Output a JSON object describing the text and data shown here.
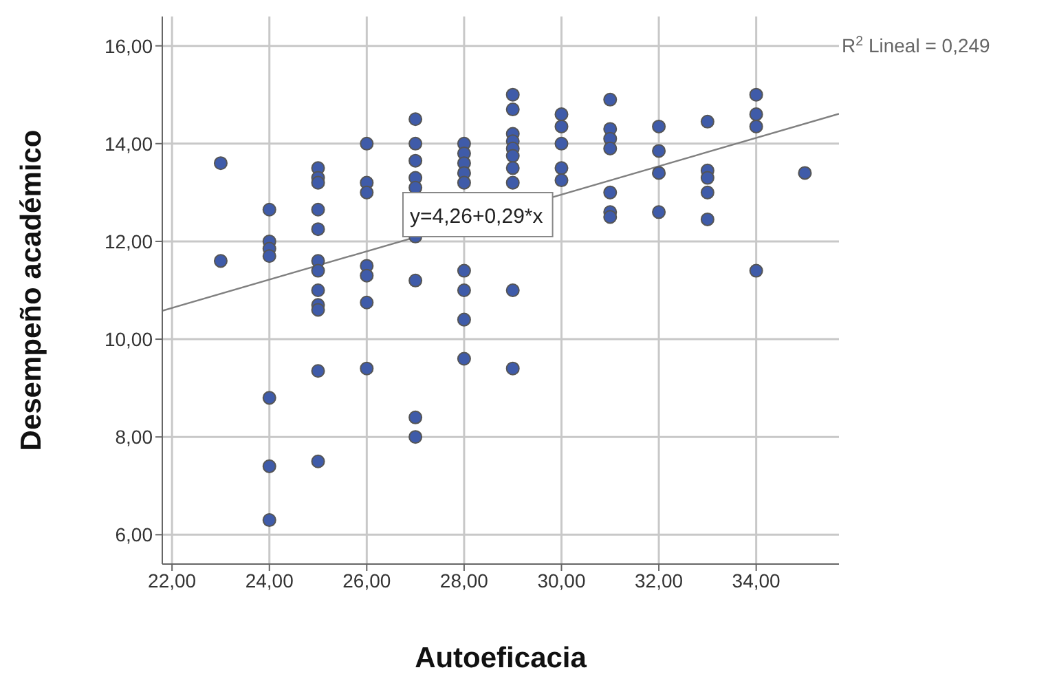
{
  "chart_data": {
    "type": "scatter",
    "xlabel": "Autoeficacia",
    "ylabel": "Desempeño académico",
    "xlim": [
      21.8,
      35.7
    ],
    "ylim": [
      5.4,
      16.6
    ],
    "xticks": [
      {
        "value": 22,
        "label": "22,00"
      },
      {
        "value": 24,
        "label": "24,00"
      },
      {
        "value": 26,
        "label": "26,00"
      },
      {
        "value": 28,
        "label": "28,00"
      },
      {
        "value": 30,
        "label": "30,00"
      },
      {
        "value": 32,
        "label": "32,00"
      },
      {
        "value": 34,
        "label": "34,00"
      }
    ],
    "yticks": [
      {
        "value": 6,
        "label": "6,00"
      },
      {
        "value": 8,
        "label": "8,00"
      },
      {
        "value": 10,
        "label": "10,00"
      },
      {
        "value": 12,
        "label": "12,00"
      },
      {
        "value": 14,
        "label": "14,00"
      },
      {
        "value": 16,
        "label": "16,00"
      }
    ],
    "grid": true,
    "annotations": [
      "R$^{2}$ Lineal = 0,249",
      "y=4,26+0,29*x"
    ],
    "series": [
      {
        "color": "#3f5ba9",
        "marker": "circle",
        "x": [
          23,
          23,
          24,
          24,
          24,
          24,
          24,
          24,
          24,
          25,
          25,
          25,
          25,
          25,
          25,
          25,
          25,
          25,
          25,
          25,
          25,
          26,
          26,
          26,
          26,
          26,
          26,
          26,
          27,
          27,
          27,
          27,
          27,
          27,
          27,
          27,
          27,
          28,
          28,
          28,
          28,
          28,
          28,
          28,
          28,
          28,
          29,
          29,
          29,
          29,
          29,
          29,
          29,
          29,
          29,
          29,
          30,
          30,
          30,
          30,
          30,
          31,
          31,
          31,
          31,
          31,
          31,
          31,
          32,
          32,
          32,
          32,
          33,
          33,
          33,
          33,
          33,
          34,
          34,
          34,
          34,
          35
        ],
        "values": [
          13.6,
          11.6,
          12.65,
          12.0,
          11.85,
          11.7,
          8.8,
          7.4,
          6.3,
          13.5,
          13.3,
          13.2,
          12.65,
          12.25,
          11.6,
          11.4,
          11.0,
          10.7,
          10.6,
          9.35,
          7.5,
          14.0,
          13.2,
          13.0,
          11.5,
          11.3,
          10.75,
          9.4,
          14.5,
          14.0,
          13.65,
          13.3,
          13.1,
          12.1,
          11.2,
          8.4,
          8.0,
          14.0,
          13.8,
          13.6,
          13.4,
          13.2,
          11.4,
          11.0,
          10.4,
          9.6,
          15.0,
          14.7,
          14.2,
          14.05,
          13.9,
          13.75,
          13.5,
          13.2,
          11.0,
          9.4,
          14.6,
          14.35,
          14.0,
          13.5,
          13.25,
          14.9,
          14.3,
          14.1,
          13.9,
          13.0,
          12.6,
          12.5,
          14.35,
          13.85,
          13.4,
          12.6,
          14.45,
          13.45,
          13.3,
          13.0,
          12.45,
          15.0,
          14.6,
          14.35,
          11.4,
          13.4
        ]
      },
      {
        "type": "line",
        "marker": "none",
        "color": "#808080",
        "x": [
          21.8,
          35.7
        ],
        "values": [
          10.58,
          14.61
        ]
      }
    ]
  }
}
